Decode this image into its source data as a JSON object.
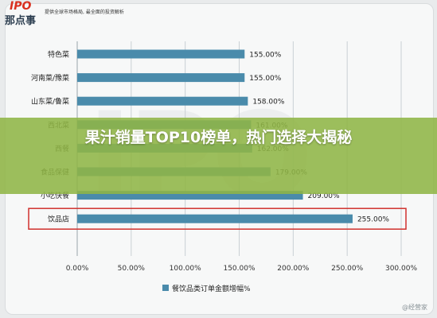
{
  "brand": {
    "logo_text": "IPO",
    "logo_subtext": "那点事",
    "tagline": "提供全球市场格局, 最全面的投资解析"
  },
  "watermark_text": "IPO",
  "banner": {
    "title": "果汁销量TOP10榜单，热门选择大揭秘"
  },
  "corner_mark": "@经营家",
  "colors": {
    "bar": "#4a8bab",
    "highlight_box": "#d0312d",
    "banner": "#8fb544"
  },
  "chart_data": {
    "type": "bar",
    "orientation": "horizontal",
    "categories": [
      "特色菜",
      "河南菜/豫菜",
      "山东菜/鲁菜",
      "西北菜",
      "西餐",
      "食品保健",
      "小吃快餐",
      "饮品店"
    ],
    "values": [
      155,
      155,
      158,
      161,
      162,
      179,
      209,
      255
    ],
    "value_labels": [
      "155.00%",
      "155.00%",
      "158.00%",
      "161.00%",
      "162.00%",
      "179.00%",
      "209.00%",
      "255.00%"
    ],
    "x_ticks": [
      "0.00%",
      "50.00%",
      "100.00%",
      "150.00%",
      "200.00%",
      "250.00%",
      "300.00%"
    ],
    "xlim": [
      0,
      300
    ],
    "legend": "餐饮品类订单金额增幅%",
    "legend_position": "bottom",
    "highlight": "饮品店",
    "grid": true
  }
}
